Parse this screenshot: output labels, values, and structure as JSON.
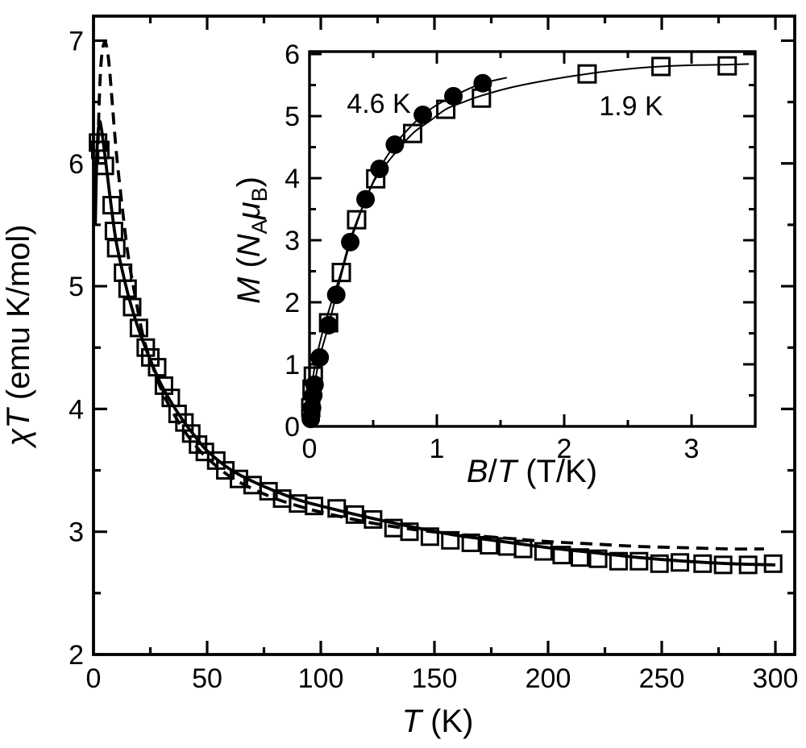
{
  "figure": {
    "background": "#ffffff",
    "ink": "#000000"
  },
  "chart_data": [
    {
      "id": "main",
      "type": "scatter+line",
      "xlabel_parts": {
        "T": "T",
        "rest": " (K)"
      },
      "ylabel_parts": {
        "chi": "χ",
        "T": "T",
        "rest": " (emu K/mol)"
      },
      "xlim": [
        0,
        308.5
      ],
      "ylim": [
        2,
        7.2
      ],
      "x_major_ticks": [
        0,
        50,
        100,
        150,
        200,
        250,
        300
      ],
      "x_tick_labels": [
        "0",
        "50",
        "100",
        "150",
        "200",
        "250",
        "300"
      ],
      "x_minor_step": 25,
      "y_major_ticks": [
        2,
        3,
        4,
        5,
        6,
        7
      ],
      "y_tick_labels": [
        "2",
        "3",
        "4",
        "5",
        "6",
        "7"
      ],
      "y_minor_step": 0.5,
      "grid": false,
      "series": [
        {
          "name": "chiT experimental data",
          "marker": "open-square",
          "points": [
            [
              2,
              6.17
            ],
            [
              3,
              6.11
            ],
            [
              5,
              5.98
            ],
            [
              8,
              5.66
            ],
            [
              9,
              5.45
            ],
            [
              10,
              5.31
            ],
            [
              13,
              5.11
            ],
            [
              15,
              4.98
            ],
            [
              17,
              4.83
            ],
            [
              20,
              4.66
            ],
            [
              23,
              4.5
            ],
            [
              25,
              4.42
            ],
            [
              28,
              4.34
            ],
            [
              31,
              4.19
            ],
            [
              34,
              4.09
            ],
            [
              37,
              3.96
            ],
            [
              40,
              3.89
            ],
            [
              43,
              3.8
            ],
            [
              46,
              3.71
            ],
            [
              49,
              3.65
            ],
            [
              54,
              3.58
            ],
            [
              58,
              3.5
            ],
            [
              64,
              3.43
            ],
            [
              70,
              3.38
            ],
            [
              77,
              3.33
            ],
            [
              83,
              3.27
            ],
            [
              90,
              3.23
            ],
            [
              97,
              3.21
            ],
            [
              107,
              3.19
            ],
            [
              115,
              3.14
            ],
            [
              123,
              3.1
            ],
            [
              132,
              3.03
            ],
            [
              139,
              3.0
            ],
            [
              148,
              2.96
            ],
            [
              157,
              2.93
            ],
            [
              166,
              2.91
            ],
            [
              174,
              2.89
            ],
            [
              182,
              2.88
            ],
            [
              189,
              2.86
            ],
            [
              198,
              2.84
            ],
            [
              206,
              2.81
            ],
            [
              214,
              2.79
            ],
            [
              222,
              2.78
            ],
            [
              231,
              2.76
            ],
            [
              240,
              2.76
            ],
            [
              249,
              2.74
            ],
            [
              258,
              2.75
            ],
            [
              268,
              2.74
            ],
            [
              277,
              2.73
            ],
            [
              288,
              2.73
            ],
            [
              299,
              2.74
            ]
          ]
        },
        {
          "name": "fit solid line",
          "line": "solid",
          "points": [
            [
              0.8,
              5.5
            ],
            [
              1.5,
              6.08
            ],
            [
              2.5,
              6.33
            ],
            [
              3.5,
              6.28
            ],
            [
              5,
              6.07
            ],
            [
              6,
              5.92
            ],
            [
              8,
              5.62
            ],
            [
              10,
              5.36
            ],
            [
              13,
              5.1
            ],
            [
              16,
              4.88
            ],
            [
              20,
              4.64
            ],
            [
              25,
              4.4
            ],
            [
              30,
              4.19
            ],
            [
              35,
              4.03
            ],
            [
              40,
              3.89
            ],
            [
              45,
              3.77
            ],
            [
              50,
              3.66
            ],
            [
              60,
              3.51
            ],
            [
              70,
              3.41
            ],
            [
              80,
              3.33
            ],
            [
              90,
              3.26
            ],
            [
              100,
              3.21
            ],
            [
              120,
              3.12
            ],
            [
              140,
              3.04
            ],
            [
              160,
              2.97
            ],
            [
              180,
              2.92
            ],
            [
              200,
              2.87
            ],
            [
              220,
              2.83
            ],
            [
              240,
              2.79
            ],
            [
              260,
              2.76
            ],
            [
              280,
              2.74
            ],
            [
              300,
              2.73
            ]
          ]
        },
        {
          "name": "fit dashed line",
          "line": "dashed",
          "points": [
            [
              1.8,
              6.0
            ],
            [
              2.5,
              6.5
            ],
            [
              3.2,
              6.78
            ],
            [
              4,
              6.93
            ],
            [
              5,
              6.99
            ],
            [
              6,
              6.93
            ],
            [
              7,
              6.78
            ],
            [
              8,
              6.55
            ],
            [
              10,
              6.1
            ],
            [
              12,
              5.75
            ],
            [
              15,
              5.28
            ],
            [
              18,
              4.95
            ],
            [
              22,
              4.58
            ],
            [
              26,
              4.35
            ],
            [
              30,
              4.15
            ],
            [
              35,
              3.97
            ],
            [
              40,
              3.82
            ],
            [
              45,
              3.7
            ],
            [
              50,
              3.6
            ],
            [
              60,
              3.45
            ],
            [
              70,
              3.35
            ],
            [
              80,
              3.27
            ],
            [
              90,
              3.21
            ],
            [
              100,
              3.16
            ],
            [
              120,
              3.08
            ],
            [
              140,
              3.02
            ],
            [
              160,
              2.98
            ],
            [
              180,
              2.95
            ],
            [
              200,
              2.92
            ],
            [
              220,
              2.9
            ],
            [
              240,
              2.88
            ],
            [
              260,
              2.87
            ],
            [
              280,
              2.86
            ],
            [
              295,
              2.86
            ]
          ]
        }
      ]
    },
    {
      "id": "inset",
      "type": "scatter+line",
      "xlabel_parts": {
        "B": "B",
        "slash": "/",
        "T": "T",
        "rest": " (T/K)"
      },
      "ylabel_parts": {
        "M": "M",
        "open": " (",
        "N": "N",
        "subA": "A",
        "mu": "μ",
        "subB": "B",
        "close": ")"
      },
      "xlim": [
        0,
        3.5
      ],
      "ylim": [
        0,
        6.04
      ],
      "x_major_ticks": [
        0,
        1,
        2,
        3
      ],
      "x_tick_labels": [
        "0",
        "1",
        "2",
        "3"
      ],
      "x_minor_step": 0.5,
      "y_major_ticks": [
        0,
        1,
        2,
        3,
        4,
        5,
        6
      ],
      "y_tick_labels": [
        "0",
        "1",
        "2",
        "3",
        "4",
        "5",
        "6"
      ],
      "y_minor_step": 0.5,
      "grid": false,
      "annotations": [
        {
          "text": "4.6 K"
        },
        {
          "text": "1.9 K"
        }
      ],
      "series": [
        {
          "name": "magnetization 4.6 K",
          "marker": "filled-circle",
          "points": [
            [
              0.01,
              0.12
            ],
            [
              0.02,
              0.3
            ],
            [
              0.03,
              0.5
            ],
            [
              0.04,
              0.67
            ],
            [
              0.08,
              1.11
            ],
            [
              0.15,
              1.63
            ],
            [
              0.21,
              2.12
            ],
            [
              0.32,
              2.97
            ],
            [
              0.44,
              3.66
            ],
            [
              0.55,
              4.15
            ],
            [
              0.67,
              4.54
            ],
            [
              0.89,
              5.02
            ],
            [
              1.13,
              5.32
            ],
            [
              1.36,
              5.53
            ]
          ]
        },
        {
          "name": "magnetization 1.9 K",
          "marker": "open-square",
          "points": [
            [
              0.01,
              0.3
            ],
            [
              0.02,
              0.6
            ],
            [
              0.03,
              0.81
            ],
            [
              0.15,
              1.67
            ],
            [
              0.25,
              2.48
            ],
            [
              0.37,
              3.33
            ],
            [
              0.52,
              3.99
            ],
            [
              0.81,
              4.72
            ],
            [
              1.07,
              5.11
            ],
            [
              1.35,
              5.29
            ],
            [
              2.18,
              5.68
            ],
            [
              2.76,
              5.8
            ],
            [
              3.28,
              5.81
            ]
          ]
        },
        {
          "name": "fit curve 4.6 K",
          "line": "thin",
          "points": [
            [
              0,
              0
            ],
            [
              0.02,
              0.38
            ],
            [
              0.04,
              0.67
            ],
            [
              0.08,
              1.11
            ],
            [
              0.15,
              1.63
            ],
            [
              0.21,
              2.12
            ],
            [
              0.27,
              2.6
            ],
            [
              0.32,
              2.97
            ],
            [
              0.38,
              3.32
            ],
            [
              0.44,
              3.66
            ],
            [
              0.55,
              4.15
            ],
            [
              0.67,
              4.54
            ],
            [
              0.78,
              4.8
            ],
            [
              0.89,
              5.02
            ],
            [
              1.0,
              5.18
            ],
            [
              1.13,
              5.32
            ],
            [
              1.25,
              5.44
            ],
            [
              1.36,
              5.53
            ],
            [
              1.55,
              5.62
            ]
          ]
        },
        {
          "name": "fit curve 1.9 K",
          "line": "thin",
          "points": [
            [
              0,
              0
            ],
            [
              0.01,
              0.35
            ],
            [
              0.03,
              0.82
            ],
            [
              0.07,
              1.25
            ],
            [
              0.12,
              1.65
            ],
            [
              0.18,
              2.05
            ],
            [
              0.25,
              2.5
            ],
            [
              0.31,
              2.95
            ],
            [
              0.37,
              3.3
            ],
            [
              0.45,
              3.7
            ],
            [
              0.52,
              4.0
            ],
            [
              0.65,
              4.35
            ],
            [
              0.81,
              4.72
            ],
            [
              0.95,
              4.93
            ],
            [
              1.07,
              5.11
            ],
            [
              1.2,
              5.22
            ],
            [
              1.35,
              5.33
            ],
            [
              1.6,
              5.47
            ],
            [
              1.9,
              5.59
            ],
            [
              2.18,
              5.68
            ],
            [
              2.5,
              5.76
            ],
            [
              2.76,
              5.8
            ],
            [
              3.0,
              5.82
            ],
            [
              3.28,
              5.83
            ],
            [
              3.45,
              5.84
            ]
          ]
        }
      ]
    }
  ]
}
